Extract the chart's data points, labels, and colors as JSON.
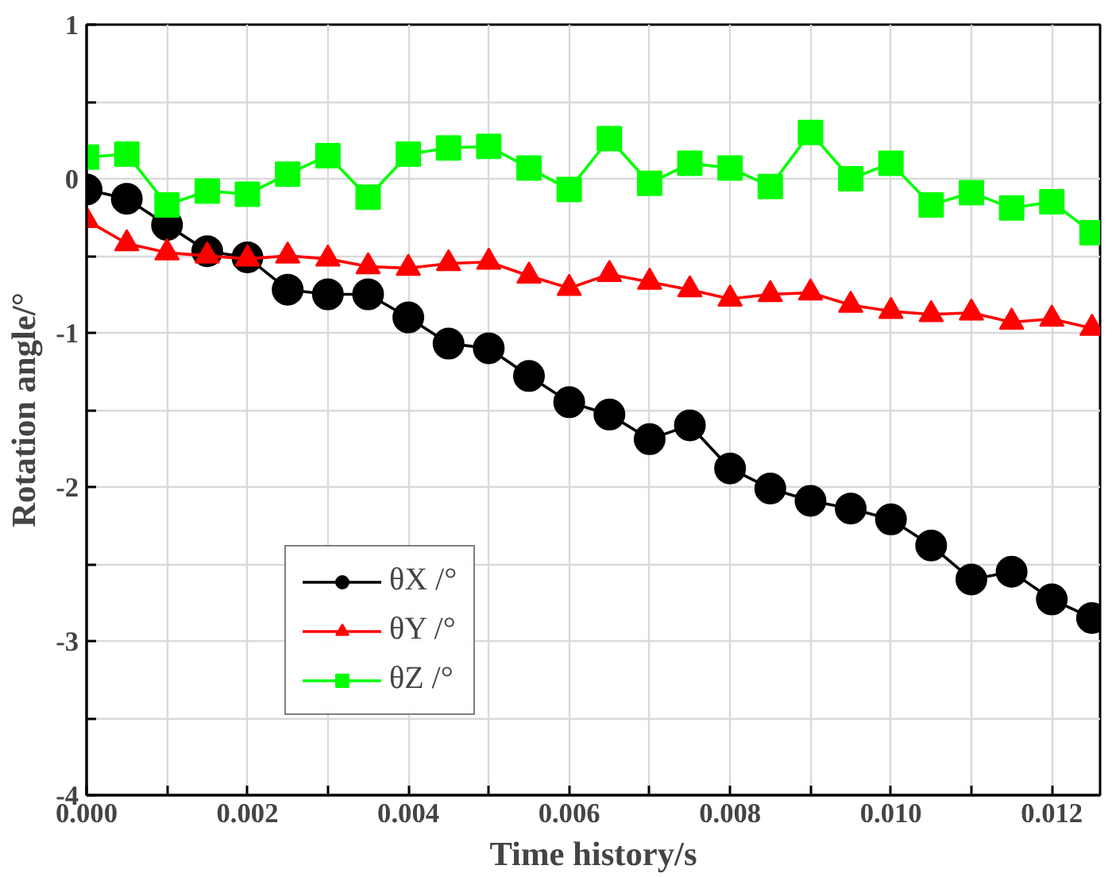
{
  "chart_data": {
    "type": "line",
    "xlabel": "Time history/s",
    "ylabel": "Rotation angle/°",
    "x": [
      0,
      0.0005,
      0.001,
      0.0015,
      0.002,
      0.0025,
      0.003,
      0.0035,
      0.004,
      0.0045,
      0.005,
      0.0055,
      0.006,
      0.0065,
      0.007,
      0.0075,
      0.008,
      0.0085,
      0.009,
      0.0095,
      0.01,
      0.0105,
      0.011,
      0.0115,
      0.012,
      0.0125
    ],
    "series": [
      {
        "name": "θX /°",
        "color": "#000000",
        "marker": "circle",
        "values": [
          -0.07,
          -0.13,
          -0.3,
          -0.47,
          -0.51,
          -0.72,
          -0.75,
          -0.75,
          -0.9,
          -1.07,
          -1.1,
          -1.28,
          -1.45,
          -1.53,
          -1.69,
          -1.6,
          -1.88,
          -2.01,
          -2.09,
          -2.14,
          -2.21,
          -2.38,
          -2.6,
          -2.55,
          -2.73,
          -2.85
        ]
      },
      {
        "name": "θY /°",
        "color": "#ff0000",
        "marker": "triangle",
        "values": [
          -0.27,
          -0.42,
          -0.48,
          -0.5,
          -0.52,
          -0.5,
          -0.52,
          -0.57,
          -0.58,
          -0.55,
          -0.54,
          -0.63,
          -0.71,
          -0.62,
          -0.67,
          -0.72,
          -0.78,
          -0.75,
          -0.74,
          -0.82,
          -0.86,
          -0.88,
          -0.87,
          -0.93,
          -0.91,
          -0.97
        ]
      },
      {
        "name": "θZ /°",
        "color": "#00ff00",
        "marker": "square",
        "values": [
          0.14,
          0.16,
          -0.17,
          -0.08,
          -0.1,
          0.03,
          0.15,
          -0.12,
          0.16,
          0.2,
          0.21,
          0.07,
          -0.07,
          0.26,
          -0.03,
          0.1,
          0.07,
          -0.05,
          0.3,
          0.0,
          0.1,
          -0.17,
          -0.09,
          -0.19,
          -0.15,
          -0.35
        ]
      }
    ],
    "xlim": [
      0,
      0.0126
    ],
    "ylim": [
      -4,
      1
    ],
    "xticks": [
      {
        "value": 0,
        "label": "0.000"
      },
      {
        "value": 0.001,
        "label": null
      },
      {
        "value": 0.002,
        "label": "0.002"
      },
      {
        "value": 0.003,
        "label": null
      },
      {
        "value": 0.004,
        "label": "0.004"
      },
      {
        "value": 0.005,
        "label": null
      },
      {
        "value": 0.006,
        "label": "0.006"
      },
      {
        "value": 0.007,
        "label": null
      },
      {
        "value": 0.008,
        "label": "0.008"
      },
      {
        "value": 0.009,
        "label": null
      },
      {
        "value": 0.01,
        "label": "0.010"
      },
      {
        "value": 0.011,
        "label": null
      },
      {
        "value": 0.012,
        "label": "0.012"
      }
    ],
    "yticks": [
      -4,
      {
        "value": -3.5,
        "label": null
      },
      -3,
      {
        "value": -2.5,
        "label": null
      },
      -2,
      {
        "value": -1.5,
        "label": null
      },
      -1,
      {
        "value": -0.5,
        "label": null
      },
      0,
      {
        "value": 0.5,
        "label": null
      },
      1
    ],
    "grid": true,
    "legend": "bottom left",
    "line_style": "solid"
  }
}
